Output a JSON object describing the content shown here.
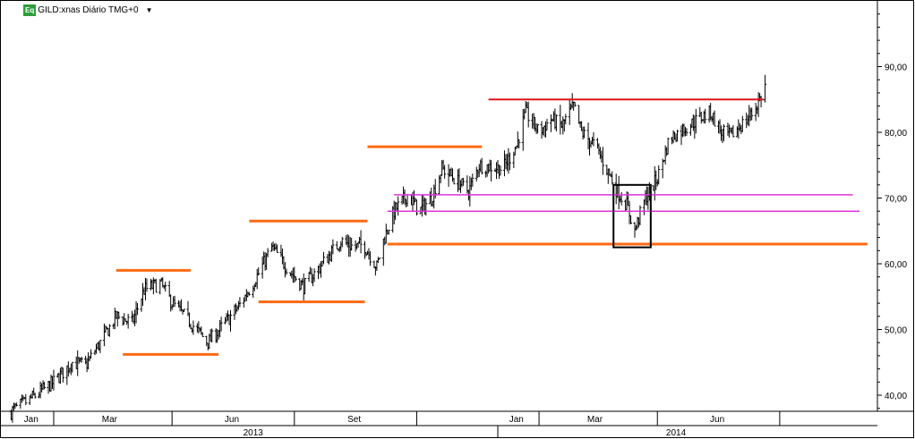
{
  "header": {
    "badge": "Eq",
    "title": "GILD:xnas Diário TMG+0",
    "dropdown_icon": "chevron-down-icon"
  },
  "chart_data": {
    "type": "ohlc",
    "title": "GILD:xnas Diário TMG+0",
    "xlabel": "",
    "ylabel": "",
    "x_range": [
      "2012-12-28",
      "2014-09-30"
    ],
    "ylim": [
      37,
      99
    ],
    "y_ticks": [
      "40,00",
      "50,00",
      "60,00",
      "70,00",
      "80,00",
      "90,00"
    ],
    "y_tick_values": [
      40,
      50,
      60,
      70,
      80,
      90
    ],
    "x_month_labels": [
      {
        "label": "Jan",
        "date": "2013-01-15"
      },
      {
        "label": "Mar",
        "date": "2013-03-15"
      },
      {
        "label": "Jun",
        "date": "2013-06-15"
      },
      {
        "label": "Set",
        "date": "2013-09-15"
      },
      {
        "label": "Jan",
        "date": "2014-01-15"
      },
      {
        "label": "Mar",
        "date": "2014-03-15"
      },
      {
        "label": "Jun",
        "date": "2014-06-15"
      }
    ],
    "x_month_separators": [
      "2013-02-01",
      "2013-05-01",
      "2013-08-01",
      "2013-11-01",
      "2014-02-01",
      "2014-05-01",
      "2014-08-01"
    ],
    "x_year_labels": [
      {
        "label": "2013",
        "date": "2013-07-01"
      },
      {
        "label": "2014",
        "date": "2014-05-15"
      }
    ],
    "x_year_separators": [
      "2014-01-01"
    ],
    "price_path": [
      [
        "2012-12-31",
        37.5
      ],
      [
        "2013-01-15",
        39.5
      ],
      [
        "2013-02-01",
        42.0
      ],
      [
        "2013-02-15",
        45.0
      ],
      [
        "2013-02-25",
        44.5
      ],
      [
        "2013-03-08",
        48.0
      ],
      [
        "2013-03-20",
        52.0
      ],
      [
        "2013-04-01",
        51.0
      ],
      [
        "2013-04-10",
        56.0
      ],
      [
        "2013-04-22",
        57.0
      ],
      [
        "2013-05-01",
        54.0
      ],
      [
        "2013-05-15",
        51.0
      ],
      [
        "2013-05-28",
        48.0
      ],
      [
        "2013-06-10",
        51.0
      ],
      [
        "2013-06-22",
        54.0
      ],
      [
        "2013-07-05",
        58.5
      ],
      [
        "2013-07-15",
        62.5
      ],
      [
        "2013-07-28",
        59.0
      ],
      [
        "2013-08-08",
        56.5
      ],
      [
        "2013-08-18",
        59.0
      ],
      [
        "2013-08-28",
        61.5
      ],
      [
        "2013-09-05",
        63.5
      ],
      [
        "2013-09-15",
        62.5
      ],
      [
        "2013-09-22",
        63.0
      ],
      [
        "2013-10-02",
        59.5
      ],
      [
        "2013-10-07",
        63.5
      ],
      [
        "2013-10-15",
        68.0
      ],
      [
        "2013-10-25",
        70.5
      ],
      [
        "2013-11-03",
        68.0
      ],
      [
        "2013-11-12",
        70.0
      ],
      [
        "2013-11-20",
        74.5
      ],
      [
        "2013-12-02",
        72.5
      ],
      [
        "2013-12-10",
        71.0
      ],
      [
        "2013-12-18",
        75.0
      ],
      [
        "2014-01-05",
        74.5
      ],
      [
        "2014-01-15",
        78.0
      ],
      [
        "2014-01-22",
        83.0
      ],
      [
        "2014-02-01",
        80.0
      ],
      [
        "2014-02-10",
        82.0
      ],
      [
        "2014-02-18",
        81.0
      ],
      [
        "2014-02-27",
        84.0
      ],
      [
        "2014-03-05",
        80.0
      ],
      [
        "2014-03-15",
        78.0
      ],
      [
        "2014-03-25",
        74.0
      ],
      [
        "2014-04-01",
        71.0
      ],
      [
        "2014-04-08",
        69.0
      ],
      [
        "2014-04-14",
        65.0
      ],
      [
        "2014-04-22",
        70.0
      ],
      [
        "2014-05-01",
        73.0
      ],
      [
        "2014-05-10",
        79.0
      ],
      [
        "2014-05-20",
        80.5
      ],
      [
        "2014-06-01",
        82.0
      ],
      [
        "2014-06-10",
        83.0
      ],
      [
        "2014-06-18",
        80.0
      ],
      [
        "2014-06-25",
        79.5
      ],
      [
        "2014-07-05",
        81.5
      ],
      [
        "2014-07-12",
        83.0
      ],
      [
        "2014-07-18",
        85.5
      ],
      [
        "2014-07-21",
        87.0
      ]
    ],
    "annotations": {
      "orange_lines": [
        {
          "x1": "2013-03-20",
          "x2": "2013-05-15",
          "y": 59.0
        },
        {
          "x1": "2013-03-25",
          "x2": "2013-06-05",
          "y": 46.2
        },
        {
          "x1": "2013-06-28",
          "x2": "2013-09-25",
          "y": 66.5
        },
        {
          "x1": "2013-07-05",
          "x2": "2013-09-23",
          "y": 54.2
        },
        {
          "x1": "2013-09-25",
          "x2": "2013-12-20",
          "y": 77.8
        },
        {
          "x1": "2013-10-10",
          "x2": "2014-10-06",
          "y": 63.0
        }
      ],
      "red_lines": [
        {
          "x1": "2013-12-25",
          "x2": "2014-07-20",
          "y": 85.0
        }
      ],
      "magenta_lines": [
        {
          "x1": "2013-10-15",
          "x2": "2014-09-25",
          "y": 70.5
        },
        {
          "x1": "2013-10-10",
          "x2": "2014-09-30",
          "y": 68.0
        }
      ],
      "rectangles": [
        {
          "x1": "2014-03-29",
          "x2": "2014-04-26",
          "y_low": 62.5,
          "y_high": 72.0
        }
      ]
    },
    "colors": {
      "orange": "#ff6a13",
      "red": "#e0141e",
      "magenta": "#e030e0",
      "bars": "#000000",
      "grid": "#000000"
    },
    "grid": false,
    "legend": "none"
  }
}
